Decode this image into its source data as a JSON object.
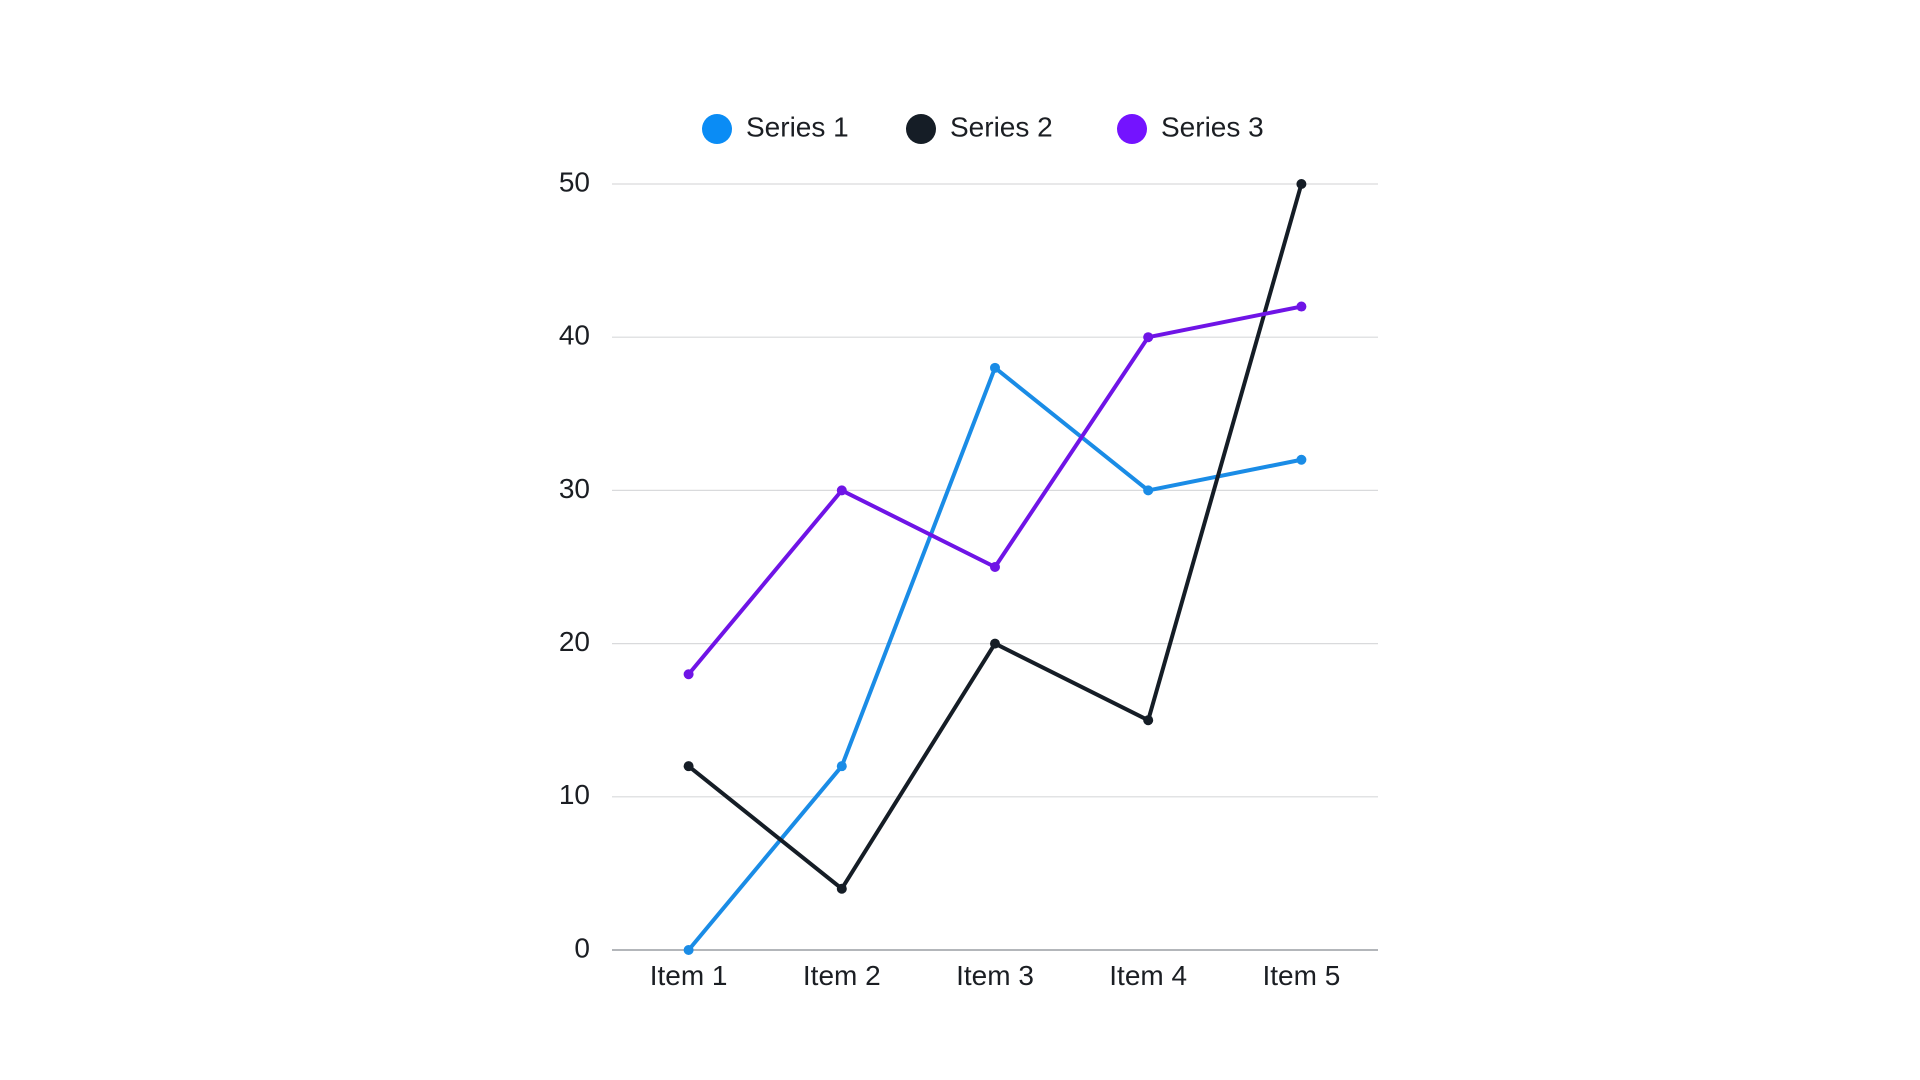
{
  "chart_data": {
    "type": "line",
    "title": "",
    "xlabel": "",
    "ylabel": "",
    "categories": [
      "Item 1",
      "Item 2",
      "Item 3",
      "Item 4",
      "Item 5"
    ],
    "ylim": [
      0,
      50
    ],
    "yticks": [
      0,
      10,
      20,
      30,
      40,
      50
    ],
    "grid": true,
    "legend_position": "top",
    "series": [
      {
        "name": "Series 1",
        "color": "#1a8ce6",
        "values": [
          0,
          12,
          38,
          30,
          32
        ]
      },
      {
        "name": "Series 2",
        "color": "#151d26",
        "values": [
          12,
          4,
          20,
          15,
          50
        ]
      },
      {
        "name": "Series 3",
        "color": "#6f14e6",
        "values": [
          18,
          30,
          25,
          40,
          42
        ]
      }
    ],
    "legend_marker_colors": [
      "#0a8cf5",
      "#151d26",
      "#7413ff"
    ]
  }
}
